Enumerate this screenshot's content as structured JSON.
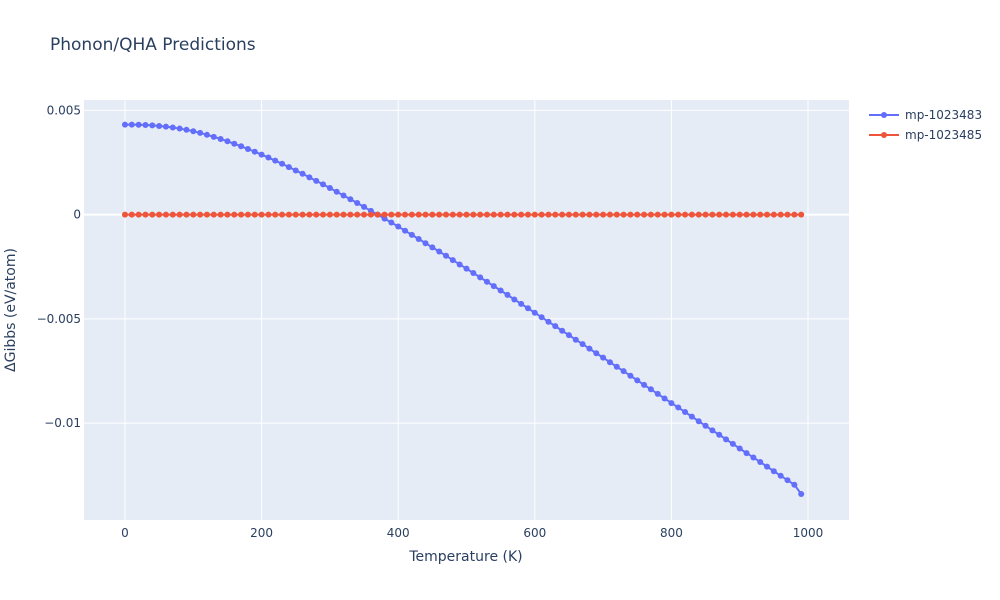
{
  "chart_data": {
    "type": "line",
    "title": "Phonon/QHA Predictions",
    "xlabel": "Temperature (K)",
    "ylabel": "ΔGibbs (eV/atom)",
    "xlim": [
      -60,
      1060
    ],
    "ylim": [
      -0.01465,
      0.0055
    ],
    "x_ticks": [
      0,
      200,
      400,
      600,
      800,
      1000
    ],
    "x_tick_labels": [
      "0",
      "200",
      "400",
      "600",
      "800",
      "1000"
    ],
    "y_ticks": [
      0.005,
      0,
      -0.005,
      -0.01
    ],
    "y_tick_labels": [
      "0.005",
      "0",
      "−0.005",
      "−0.01"
    ],
    "grid": true,
    "legend_position": "top-right",
    "x_start": 0,
    "x_step": 10,
    "x_count": 100,
    "series": [
      {
        "name": "mp-1023483",
        "color": "#636efa",
        "marker": "circle",
        "values": [
          0.00432,
          0.00432,
          0.00431,
          0.0043,
          0.00428,
          0.00425,
          0.00422,
          0.00418,
          0.00413,
          0.00407,
          0.004,
          0.00392,
          0.00383,
          0.00373,
          0.00363,
          0.00352,
          0.0034,
          0.00328,
          0.00315,
          0.00302,
          0.00288,
          0.00274,
          0.00259,
          0.00244,
          0.00228,
          0.00212,
          0.00196,
          0.00179,
          0.00162,
          0.00145,
          0.00128,
          0.0011,
          0.00092,
          0.00074,
          0.00056,
          0.00037,
          0.00018,
          0.0,
          -0.00019,
          -0.00038,
          -0.00057,
          -0.00077,
          -0.00097,
          -0.00117,
          -0.00137,
          -0.00157,
          -0.00177,
          -0.00197,
          -0.00218,
          -0.00239,
          -0.00259,
          -0.0028,
          -0.00301,
          -0.00322,
          -0.00343,
          -0.00364,
          -0.00385,
          -0.00407,
          -0.00428,
          -0.00449,
          -0.00471,
          -0.00492,
          -0.00514,
          -0.00535,
          -0.00557,
          -0.00578,
          -0.006,
          -0.00621,
          -0.00643,
          -0.00665,
          -0.00686,
          -0.00708,
          -0.0073,
          -0.00751,
          -0.00773,
          -0.00795,
          -0.00817,
          -0.00838,
          -0.0086,
          -0.00882,
          -0.00904,
          -0.00925,
          -0.00947,
          -0.00969,
          -0.00991,
          -0.01013,
          -0.01035,
          -0.01056,
          -0.01078,
          -0.011,
          -0.01122,
          -0.01144,
          -0.01165,
          -0.01187,
          -0.01209,
          -0.01231,
          -0.01253,
          -0.01274,
          -0.01296,
          -0.0134
        ]
      },
      {
        "name": "mp-1023485",
        "color": "#ef553b",
        "marker": "circle",
        "values": [
          0,
          0,
          0,
          0,
          0,
          0,
          0,
          0,
          0,
          0,
          0,
          0,
          0,
          0,
          0,
          0,
          0,
          0,
          0,
          0,
          0,
          0,
          0,
          0,
          0,
          0,
          0,
          0,
          0,
          0,
          0,
          0,
          0,
          0,
          0,
          0,
          0,
          0,
          0,
          0,
          0,
          0,
          0,
          0,
          0,
          0,
          0,
          0,
          0,
          0,
          0,
          0,
          0,
          0,
          0,
          0,
          0,
          0,
          0,
          0,
          0,
          0,
          0,
          0,
          0,
          0,
          0,
          0,
          0,
          0,
          0,
          0,
          0,
          0,
          0,
          0,
          0,
          0,
          0,
          0,
          0,
          0,
          0,
          0,
          0,
          0,
          0,
          0,
          0,
          0,
          0,
          0,
          0,
          0,
          0,
          0,
          0,
          0,
          0,
          0
        ]
      }
    ]
  }
}
